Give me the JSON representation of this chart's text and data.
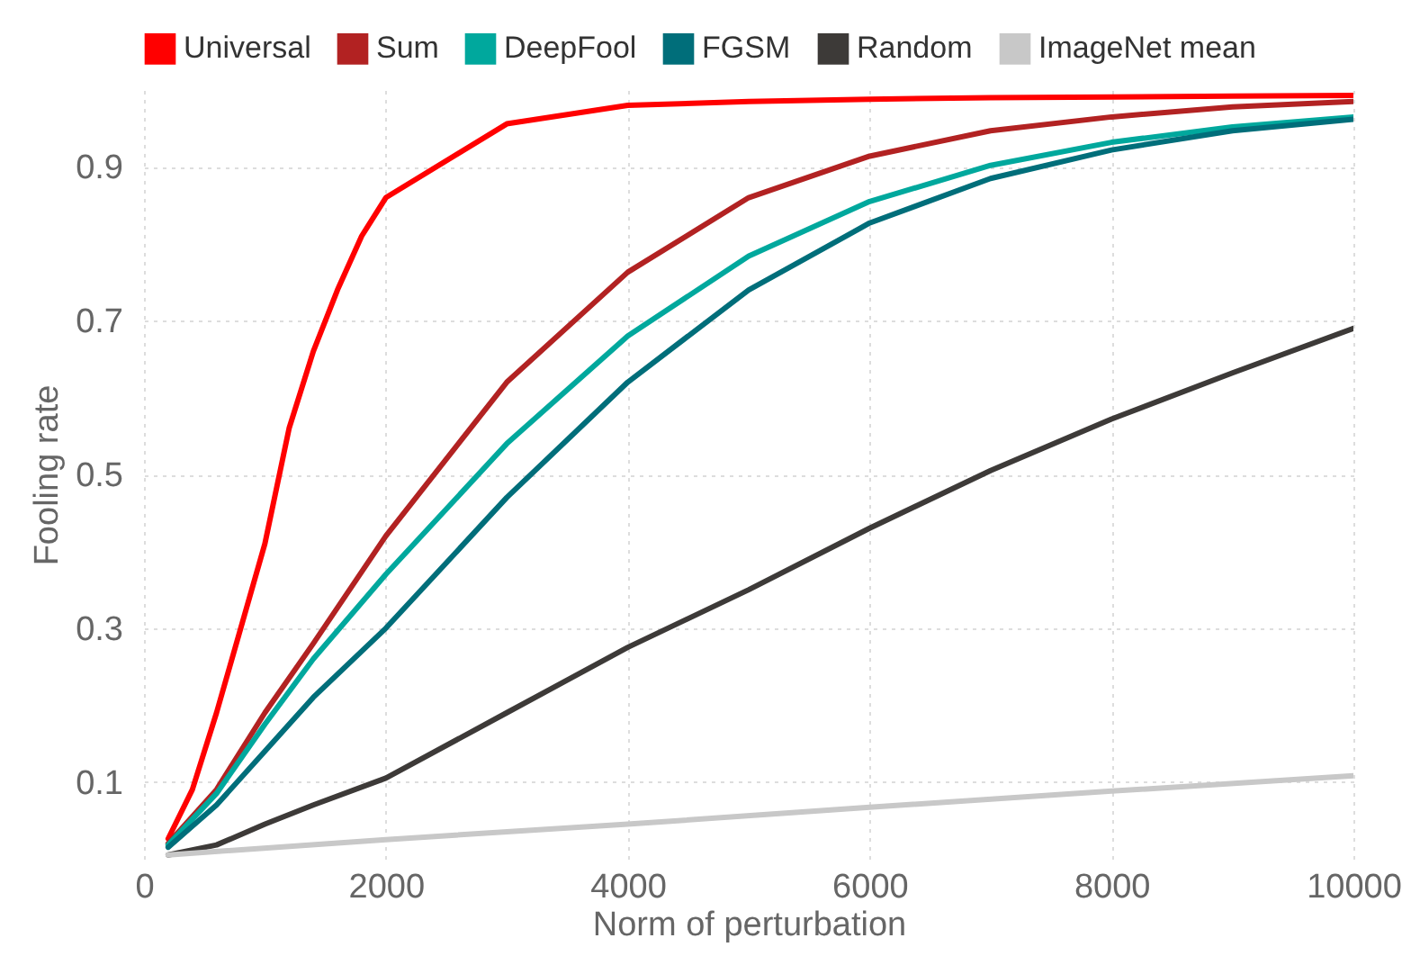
{
  "chart_data": {
    "type": "line",
    "xlabel": "Norm of perturbation",
    "ylabel": "Fooling rate",
    "xlim": [
      0,
      10000
    ],
    "ylim": [
      0,
      1
    ],
    "xticks": [
      0,
      2000,
      4000,
      6000,
      8000,
      10000
    ],
    "yticks": [
      0.1,
      0.3,
      0.5,
      0.7,
      0.9
    ],
    "grid": true,
    "legend": "top",
    "marker": "none",
    "line_style": "solid",
    "series": [
      {
        "name": "Universal",
        "color": "#ff0000",
        "x": [
          200,
          400,
          600,
          800,
          1000,
          1200,
          1400,
          1600,
          1800,
          2000,
          3000,
          4000,
          5000,
          6000,
          7000,
          8000,
          9000,
          10000
        ],
        "values": [
          0.026,
          0.09,
          0.19,
          0.3,
          0.41,
          0.56,
          0.66,
          0.74,
          0.81,
          0.86,
          0.956,
          0.98,
          0.985,
          0.988,
          0.99,
          0.991,
          0.992,
          0.993
        ]
      },
      {
        "name": "Sum",
        "color": "#b22222",
        "x": [
          200,
          600,
          1000,
          1400,
          2000,
          3000,
          4000,
          5000,
          6000,
          7000,
          8000,
          9000,
          10000
        ],
        "values": [
          0.02,
          0.09,
          0.19,
          0.28,
          0.42,
          0.62,
          0.763,
          0.86,
          0.914,
          0.947,
          0.965,
          0.978,
          0.985
        ]
      },
      {
        "name": "DeepFool",
        "color": "#00a89d",
        "x": [
          200,
          600,
          1000,
          1400,
          2000,
          3000,
          4000,
          5000,
          6000,
          7000,
          8000,
          9000,
          10000
        ],
        "values": [
          0.018,
          0.085,
          0.175,
          0.26,
          0.37,
          0.54,
          0.68,
          0.784,
          0.855,
          0.902,
          0.932,
          0.952,
          0.965
        ]
      },
      {
        "name": "FGSM",
        "color": "#006e7a",
        "x": [
          200,
          600,
          1000,
          1400,
          2000,
          3000,
          4000,
          5000,
          6000,
          7000,
          8000,
          9000,
          10000
        ],
        "values": [
          0.015,
          0.07,
          0.14,
          0.21,
          0.3,
          0.47,
          0.62,
          0.74,
          0.827,
          0.885,
          0.922,
          0.947,
          0.962
        ]
      },
      {
        "name": "Random",
        "color": "#3d3a38",
        "x": [
          200,
          600,
          1000,
          1400,
          2000,
          3000,
          4000,
          5000,
          6000,
          7000,
          8000,
          9000,
          10000
        ],
        "values": [
          0.005,
          0.018,
          0.045,
          0.07,
          0.105,
          0.19,
          0.275,
          0.35,
          0.43,
          0.505,
          0.572,
          0.632,
          0.69
        ]
      },
      {
        "name": "ImageNet mean",
        "color": "#c8c8c8",
        "x": [
          200,
          2000,
          4000,
          6000,
          8000,
          10000
        ],
        "values": [
          0.005,
          0.025,
          0.045,
          0.067,
          0.088,
          0.108
        ]
      }
    ]
  }
}
